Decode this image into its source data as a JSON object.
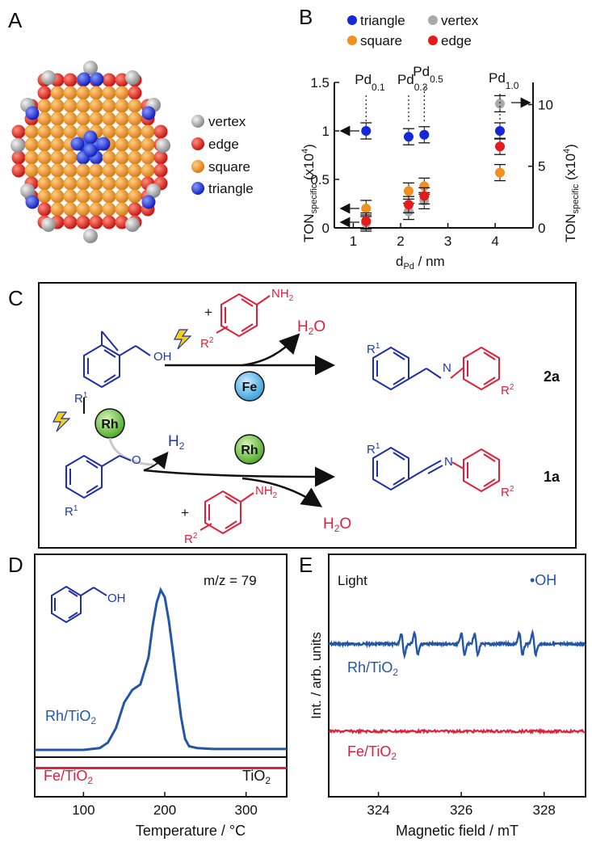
{
  "panels": {
    "A": "A",
    "B": "B",
    "C": "C",
    "D": "D",
    "E": "E"
  },
  "panelA": {
    "legend": [
      {
        "label": "vertex",
        "color": "#a8a8a8"
      },
      {
        "label": "edge",
        "color": "#e8261f"
      },
      {
        "label": "square",
        "color": "#f29a1f"
      },
      {
        "label": "triangle",
        "color": "#1f2fe0"
      }
    ]
  },
  "colors": {
    "triangle": "#1428d8",
    "vertex": "#a9a9a9",
    "square": "#f0901e",
    "edge": "#e41b1b",
    "rhBlue": "#2456a8",
    "feRed": "#e0203a",
    "molBlue": "#1f2fa8"
  },
  "chart_data": [
    {
      "type": "scatter",
      "panel": "B",
      "legend": [
        {
          "name": "triangle",
          "color": "#1428d8"
        },
        {
          "name": "vertex",
          "color": "#a9a9a9"
        },
        {
          "name": "square",
          "color": "#f0901e"
        },
        {
          "name": "edge",
          "color": "#e41b1b"
        }
      ],
      "xlabel_main": "d",
      "xlabel_sub": "Pd",
      "xlabel_unit": " / nm",
      "ylabel_left_main": "TON",
      "ylabel_left_sub": "specific",
      "ylabel_left_unit": " (x10",
      "ylabel_left_exp": "4",
      "ylabel_left_close": ")",
      "ylabel_right_main": "TON",
      "ylabel_right_sub": "specific",
      "ylabel_right_unit": " (x10",
      "ylabel_right_exp": "4",
      "ylabel_right_close": ")",
      "xlim": [
        0.6,
        4.8
      ],
      "ylim_left": [
        0,
        1.5
      ],
      "ylim_right": [
        0,
        11.8
      ],
      "xticks": [
        "1",
        "2",
        "3",
        "4"
      ],
      "yticks_left": [
        "0",
        "0.5",
        "1",
        "1.5"
      ],
      "yticks_right": [
        "0",
        "5",
        "10"
      ],
      "sample_labels": [
        {
          "main": "Pd",
          "sub": "0.1",
          "x": 1.27
        },
        {
          "main": "Pd",
          "sub": "0.3",
          "x": 2.17
        },
        {
          "main": "Pd",
          "sub": "0.5",
          "x": 2.5
        },
        {
          "main": "Pd",
          "sub": "1.0",
          "x": 4.1
        }
      ],
      "series": [
        {
          "name": "triangle",
          "axis": "left",
          "points": [
            [
              1.27,
              1.0
            ],
            [
              2.17,
              0.94
            ],
            [
              2.5,
              0.96
            ],
            [
              4.1,
              1.0
            ]
          ]
        },
        {
          "name": "vertex",
          "axis": "left",
          "points": [
            [
              1.27,
              0.05
            ],
            [
              2.17,
              0.17
            ],
            [
              2.5,
              0.28
            ],
            [
              4.1,
              1.28
            ]
          ]
        },
        {
          "name": "square",
          "axis": "left",
          "points": [
            [
              1.27,
              0.2
            ],
            [
              2.17,
              0.38
            ],
            [
              2.5,
              0.43
            ],
            [
              4.1,
              0.57
            ]
          ]
        },
        {
          "name": "edge",
          "axis": "left",
          "points": [
            [
              1.27,
              0.07
            ],
            [
              2.17,
              0.24
            ],
            [
              2.5,
              0.33
            ],
            [
              4.1,
              0.84
            ]
          ]
        }
      ]
    },
    {
      "type": "line",
      "panel": "D",
      "annotation": "m/z = 79",
      "xlabel": "Temperature / °C",
      "xlim": [
        40,
        350
      ],
      "xticks": [
        "100",
        "200",
        "300"
      ],
      "series": [
        {
          "name": "Rh/TiO2",
          "color": "#2456a8",
          "x": [
            40,
            100,
            120,
            130,
            140,
            150,
            160,
            170,
            180,
            185,
            190,
            195,
            200,
            205,
            210,
            215,
            220,
            225,
            230,
            240,
            260,
            300,
            350
          ],
          "y": [
            0.04,
            0.04,
            0.05,
            0.08,
            0.16,
            0.3,
            0.37,
            0.4,
            0.55,
            0.72,
            0.85,
            0.92,
            0.88,
            0.75,
            0.58,
            0.4,
            0.22,
            0.1,
            0.06,
            0.05,
            0.045,
            0.045,
            0.045
          ]
        },
        {
          "name": "TiO2",
          "color": "#111111",
          "x": [
            40,
            350
          ],
          "y": [
            0.0,
            0.0
          ]
        },
        {
          "name": "Fe/TiO2",
          "color": "#e0203a",
          "x": [
            40,
            350
          ],
          "y": [
            -0.06,
            -0.06
          ]
        }
      ],
      "labels": {
        "rh_main": "Rh/TiO",
        "rh_sub": "2",
        "fe_main": "Fe/TiO",
        "fe_sub": "2",
        "ti_main": "TiO",
        "ti_sub": "2"
      }
    },
    {
      "type": "line",
      "panel": "E",
      "title": "Light",
      "annotation": "•OH",
      "xlabel": "Magnetic field / mT",
      "ylabel": "Int. / arb. units",
      "xlim": [
        322.8,
        329.0
      ],
      "xticks": [
        "324",
        "326",
        "328"
      ],
      "labels": {
        "rh_main": "Rh/TiO",
        "rh_sub": "2",
        "fe_main": "Fe/TiO",
        "fe_sub": "2"
      }
    }
  ],
  "panelC": {
    "reagent_top_sub": "NH",
    "reagent_top_sub2": "2",
    "plus": "+",
    "r2": "R",
    "r2sup": "2",
    "r1": "R",
    "r1sup": "1",
    "water_top": "H",
    "water_top_sub": "2",
    "water_top_o": "O",
    "fe": "Fe",
    "rh": "Rh",
    "rh_center": "Rh",
    "h2": "H",
    "h2sub": "2",
    "water_bot": "H",
    "water_bot_sub": "2",
    "water_bot_o": "O",
    "oh": "OH",
    "o": "O",
    "n": "N",
    "product_top": "2a",
    "product_bot": "1a"
  },
  "panelD_molecule": {
    "oh": "OH"
  }
}
